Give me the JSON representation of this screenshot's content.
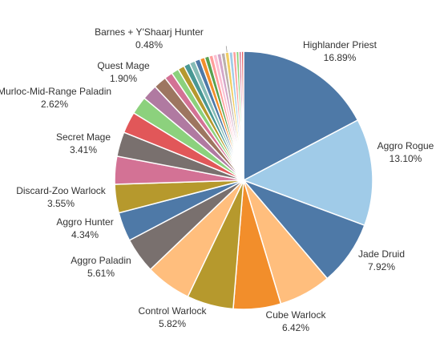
{
  "chart_data": {
    "type": "pie",
    "title": "",
    "legend": "none",
    "slices": [
      {
        "name": "Highlander Priest",
        "value": 16.89,
        "label": "16.89%",
        "color": "#4e79a7",
        "labeled": true
      },
      {
        "name": "Aggro Rogue",
        "value": 13.1,
        "label": "13.10%",
        "color": "#a0cbe8",
        "labeled": true
      },
      {
        "name": "Jade Druid",
        "value": 7.92,
        "label": "7.92%",
        "color": "#4e79a7",
        "labeled": true
      },
      {
        "name": "Cube Warlock",
        "value": 6.42,
        "label": "6.42%",
        "color": "#ffbe7d",
        "labeled": true
      },
      {
        "name": "Control Warlock",
        "value": 5.82,
        "label": "5.82%",
        "color": "#f28e2b",
        "labeled": true
      },
      {
        "name": "",
        "value": 5.7,
        "label": "",
        "color": "#b6992d",
        "labeled": false
      },
      {
        "name": "Aggro Paladin",
        "value": 5.61,
        "label": "5.61%",
        "color": "#ffbe7d",
        "labeled": true
      },
      {
        "name": "Aggro Hunter",
        "value": 4.34,
        "label": "4.34%",
        "color": "#79706e",
        "labeled": true
      },
      {
        "name": "Discard-Zoo Warlock",
        "value": 3.55,
        "label": "3.55%",
        "color": "#4e79a7",
        "labeled": true
      },
      {
        "name": "",
        "value": 3.5,
        "label": "",
        "color": "#b6992d",
        "labeled": false
      },
      {
        "name": "Secret Mage",
        "value": 3.41,
        "label": "3.41%",
        "color": "#d37295",
        "labeled": true
      },
      {
        "name": "",
        "value": 3.0,
        "label": "",
        "color": "#79706e",
        "labeled": false
      },
      {
        "name": "Murloc-Mid-Range Paladin",
        "value": 2.62,
        "label": "2.62%",
        "color": "#e15759",
        "labeled": true
      },
      {
        "name": "",
        "value": 2.2,
        "label": "",
        "color": "#8cd17d",
        "labeled": false
      },
      {
        "name": "Quest Mage",
        "value": 1.9,
        "label": "1.90%",
        "color": "#b07aa1",
        "labeled": true
      },
      {
        "name": "",
        "value": 1.6,
        "label": "",
        "color": "#9d7660",
        "labeled": false
      },
      {
        "name": "",
        "value": 1.0,
        "label": "",
        "color": "#d37295",
        "labeled": false
      },
      {
        "name": "",
        "value": 0.9,
        "label": "",
        "color": "#8cd17d",
        "labeled": false
      },
      {
        "name": "",
        "value": 0.8,
        "label": "",
        "color": "#b6992d",
        "labeled": false
      },
      {
        "name": "",
        "value": 0.75,
        "label": "",
        "color": "#499894",
        "labeled": false
      },
      {
        "name": "",
        "value": 0.7,
        "label": "",
        "color": "#86bcb6",
        "labeled": false
      },
      {
        "name": "",
        "value": 0.65,
        "label": "",
        "color": "#4e79a7",
        "labeled": false
      },
      {
        "name": "",
        "value": 0.6,
        "label": "",
        "color": "#f28e2b",
        "labeled": false
      },
      {
        "name": "",
        "value": 0.55,
        "label": "",
        "color": "#59a14f",
        "labeled": false
      },
      {
        "name": "",
        "value": 0.5,
        "label": "",
        "color": "#ff9d9a",
        "labeled": false
      },
      {
        "name": "",
        "value": 0.5,
        "label": "",
        "color": "#fabfd2",
        "labeled": false
      },
      {
        "name": "",
        "value": 0.5,
        "label": "",
        "color": "#d4a6c8",
        "labeled": false
      },
      {
        "name": "",
        "value": 0.49,
        "label": "",
        "color": "#bab0ac",
        "labeled": false
      },
      {
        "name": "Barnes + Y'Shaarj Hunter",
        "value": 0.48,
        "label": "0.48%",
        "color": "#f1ce63",
        "labeled": true
      },
      {
        "name": "",
        "value": 0.45,
        "label": "",
        "color": "#a0cbe8",
        "labeled": false
      },
      {
        "name": "",
        "value": 0.4,
        "label": "",
        "color": "#ff9d9a",
        "labeled": false
      },
      {
        "name": "",
        "value": 0.35,
        "label": "",
        "color": "#8cd17d",
        "labeled": false
      },
      {
        "name": "",
        "value": 0.3,
        "label": "",
        "color": "#d37295",
        "labeled": false
      },
      {
        "name": "",
        "value": 0.27,
        "label": "",
        "color": "#e15759",
        "labeled": false
      }
    ]
  }
}
